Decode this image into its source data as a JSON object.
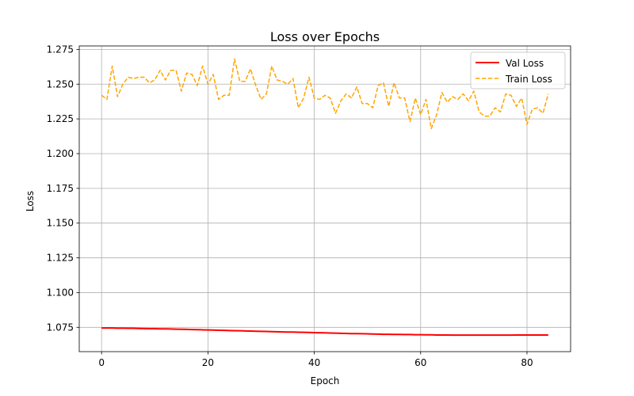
{
  "chart_data": {
    "type": "line",
    "title": "Loss over Epochs",
    "xlabel": "Epoch",
    "ylabel": "Loss",
    "xlim": [
      -4.2,
      88.2
    ],
    "ylim": [
      1.0575,
      1.2775
    ],
    "xticks": [
      0,
      20,
      40,
      60,
      80
    ],
    "yticks": [
      1.075,
      1.1,
      1.125,
      1.15,
      1.175,
      1.2,
      1.225,
      1.25,
      1.275
    ],
    "ytick_labels": [
      "1.075",
      "1.100",
      "1.125",
      "1.150",
      "1.175",
      "1.200",
      "1.225",
      "1.250",
      "1.275"
    ],
    "grid": true,
    "legend_position": "upper right",
    "x": [
      0,
      1,
      2,
      3,
      4,
      5,
      6,
      7,
      8,
      9,
      10,
      11,
      12,
      13,
      14,
      15,
      16,
      17,
      18,
      19,
      20,
      21,
      22,
      23,
      24,
      25,
      26,
      27,
      28,
      29,
      30,
      31,
      32,
      33,
      34,
      35,
      36,
      37,
      38,
      39,
      40,
      41,
      42,
      43,
      44,
      45,
      46,
      47,
      48,
      49,
      50,
      51,
      52,
      53,
      54,
      55,
      56,
      57,
      58,
      59,
      60,
      61,
      62,
      63,
      64,
      65,
      66,
      67,
      68,
      69,
      70,
      71,
      72,
      73,
      74,
      75,
      76,
      77,
      78,
      79,
      80,
      81,
      82,
      83,
      84
    ],
    "series": [
      {
        "name": "Val Loss",
        "color": "#ff0000",
        "style": "solid",
        "values": [
          1.0745,
          1.0745,
          1.0745,
          1.0744,
          1.0744,
          1.0743,
          1.0743,
          1.0742,
          1.0741,
          1.074,
          1.074,
          1.0739,
          1.0739,
          1.0738,
          1.0737,
          1.0736,
          1.0735,
          1.0734,
          1.0733,
          1.0732,
          1.0731,
          1.073,
          1.0729,
          1.0728,
          1.0727,
          1.0726,
          1.0725,
          1.0724,
          1.0723,
          1.0722,
          1.0721,
          1.072,
          1.0719,
          1.0718,
          1.0717,
          1.0716,
          1.0716,
          1.0715,
          1.0714,
          1.0713,
          1.0712,
          1.0711,
          1.071,
          1.0709,
          1.0708,
          1.0707,
          1.0706,
          1.0705,
          1.0705,
          1.0704,
          1.0703,
          1.0702,
          1.0701,
          1.07,
          1.07,
          1.0699,
          1.0699,
          1.0698,
          1.0698,
          1.0697,
          1.0697,
          1.0696,
          1.0696,
          1.0695,
          1.0695,
          1.0695,
          1.0694,
          1.0694,
          1.0694,
          1.0694,
          1.0694,
          1.0694,
          1.0694,
          1.0694,
          1.0694,
          1.0694,
          1.0694,
          1.0694,
          1.0695,
          1.0695,
          1.0695,
          1.0695,
          1.0695,
          1.0695,
          1.0695
        ]
      },
      {
        "name": "Train Loss",
        "color": "#ffa500",
        "style": "dashed",
        "values": [
          1.242,
          1.239,
          1.263,
          1.241,
          1.25,
          1.255,
          1.254,
          1.255,
          1.255,
          1.251,
          1.253,
          1.26,
          1.253,
          1.26,
          1.26,
          1.245,
          1.258,
          1.257,
          1.249,
          1.263,
          1.25,
          1.257,
          1.239,
          1.242,
          1.242,
          1.268,
          1.252,
          1.252,
          1.261,
          1.249,
          1.239,
          1.243,
          1.263,
          1.253,
          1.252,
          1.25,
          1.254,
          1.233,
          1.24,
          1.255,
          1.24,
          1.239,
          1.242,
          1.24,
          1.229,
          1.238,
          1.243,
          1.24,
          1.248,
          1.236,
          1.236,
          1.233,
          1.249,
          1.251,
          1.234,
          1.251,
          1.24,
          1.24,
          1.223,
          1.24,
          1.228,
          1.239,
          1.218,
          1.228,
          1.244,
          1.237,
          1.241,
          1.239,
          1.243,
          1.238,
          1.245,
          1.23,
          1.227,
          1.227,
          1.233,
          1.23,
          1.243,
          1.242,
          1.234,
          1.24,
          1.221,
          1.232,
          1.233,
          1.229,
          1.243
        ]
      }
    ]
  }
}
